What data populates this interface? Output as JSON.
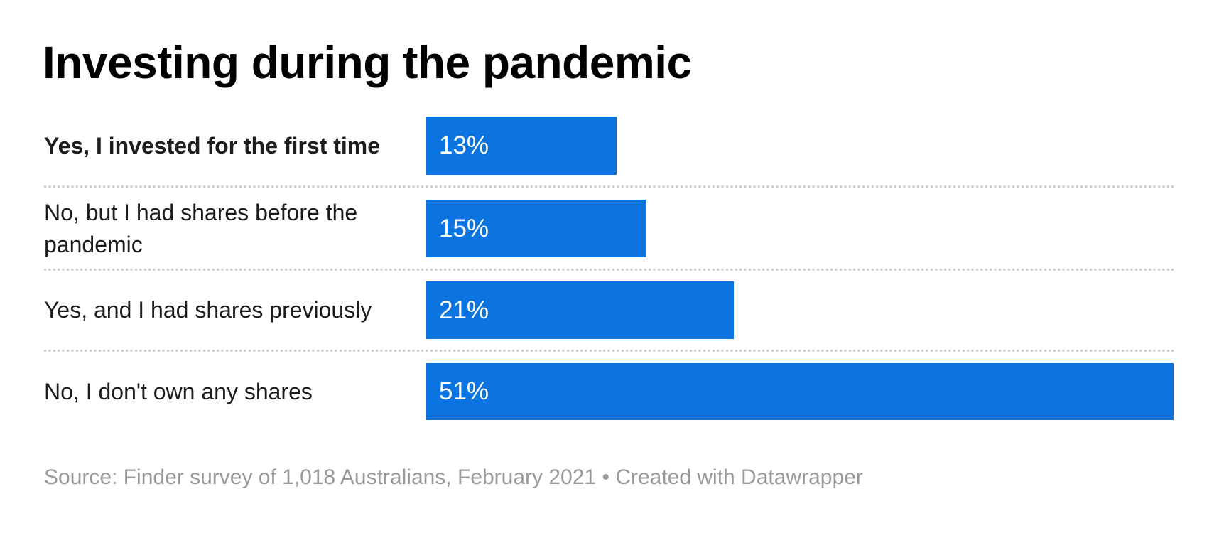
{
  "header": {
    "title": "Investing during the pandemic"
  },
  "chart_data": {
    "type": "bar",
    "orientation": "horizontal",
    "title": "Investing during the pandemic",
    "categories": [
      "Yes, I invested for the first time",
      "No, but I had shares before the pandemic",
      "Yes, and I had shares previously",
      "No, I don't own any shares"
    ],
    "values": [
      13,
      15,
      21,
      51
    ],
    "value_labels": [
      "13%",
      "15%",
      "21%",
      "51%"
    ],
    "unit": "%",
    "xlim": [
      0,
      51
    ],
    "grid": false,
    "legend_position": "none",
    "bar_color": "#0b74e0",
    "value_label_position": "inside-start",
    "source": "Source: Finder survey of 1,018 Australians, February 2021 • Created with Datawrapper"
  },
  "rows": [
    {
      "label": "Yes, I invested for the first time",
      "value_label": "13%",
      "pct": 13,
      "bold": true
    },
    {
      "label": "No, but I had shares before the pandemic",
      "value_label": "15%",
      "pct": 15,
      "bold": false
    },
    {
      "label": "Yes, and I had shares previously",
      "value_label": "21%",
      "pct": 21,
      "bold": false
    },
    {
      "label": "No, I don't own any shares",
      "value_label": "51%",
      "pct": 51,
      "bold": false
    }
  ],
  "footer": {
    "source_prefix": "Source:",
    "source_text": "Finder survey of 1,018 Australians, February 2021",
    "separator": "•",
    "credit": "Created with Datawrapper"
  },
  "colors": {
    "background": "#ffffff",
    "bar": "#0b74e0",
    "title_text": "#000000",
    "label_text": "#1d1d1d",
    "value_text": "#ffffff",
    "separator": "#cccccc",
    "source_text": "#999999"
  }
}
